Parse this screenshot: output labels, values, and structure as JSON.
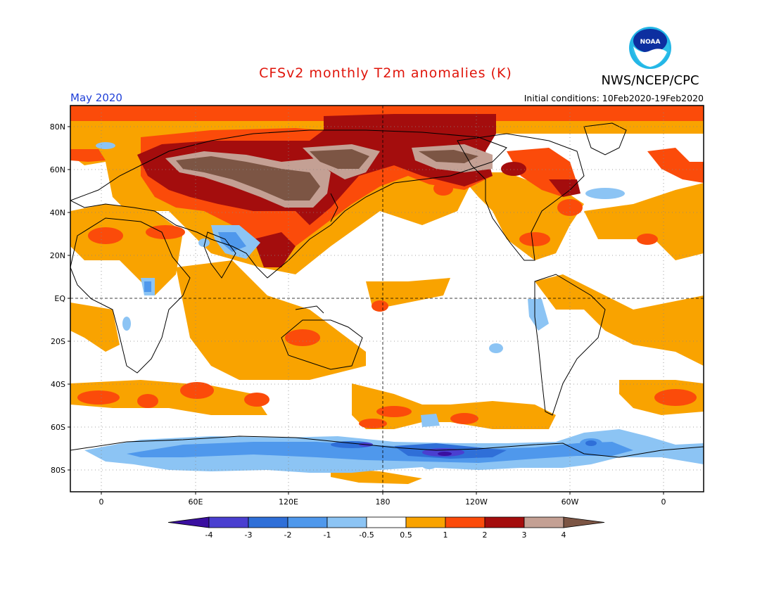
{
  "header": {
    "title": "CFSv2 monthly T2m anomalies (K)",
    "org": "NWS/NCEP/CPC",
    "logo_text": "NOAA",
    "month": "May 2020",
    "initial_conditions": "Initial conditions: 10Feb2020-19Feb2020"
  },
  "map": {
    "lat_labels": [
      "80N",
      "60N",
      "40N",
      "20N",
      "EQ",
      "20S",
      "40S",
      "60S",
      "80S"
    ],
    "lon_labels": [
      "0",
      "60E",
      "120E",
      "180",
      "120W",
      "60W",
      "0"
    ]
  },
  "colorbar": {
    "labels": [
      "-4",
      "-3",
      "-2",
      "-1",
      "-0.5",
      "0.5",
      "1",
      "2",
      "3",
      "4"
    ],
    "colors": [
      "#3a0fa0",
      "#4a3fd0",
      "#2f6fd8",
      "#4f98ec",
      "#8cc4f4",
      "#ffffff",
      "#f9a300",
      "#fb4b0a",
      "#a40d0d",
      "#c4a094",
      "#7c5544"
    ]
  },
  "colors": {
    "title": "#e0140a",
    "month": "#1e3fd8",
    "frame": "#000000",
    "land_outline": "#000000",
    "grid": "#777777"
  }
}
